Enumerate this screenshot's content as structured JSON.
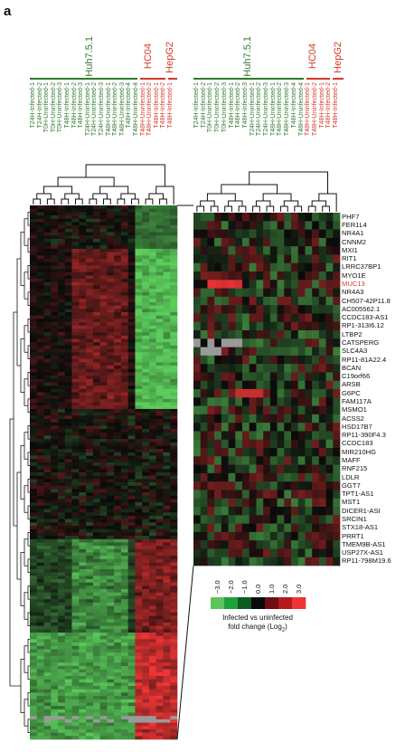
{
  "panel_letter": "a",
  "left_groups": [
    {
      "label": "Huh7.5.1",
      "color": "#2f7a2f"
    },
    {
      "label": "HC04",
      "color": "#d23a2a"
    },
    {
      "label": "HepG2",
      "color": "#d23a2a"
    }
  ],
  "right_groups": [
    {
      "label": "Huh7.5.1",
      "color": "#2f7a2f"
    },
    {
      "label": "HC04",
      "color": "#d23a2a"
    },
    {
      "label": "HepG2",
      "color": "#d23a2a"
    }
  ],
  "left_columns": [
    {
      "label": "T24H-Infected-1",
      "color": "#2f7a2f"
    },
    {
      "label": "T24H-Infected-2",
      "color": "#2f7a2f"
    },
    {
      "label": "T0H-Uninfected-1",
      "color": "#2f7a2f"
    },
    {
      "label": "T0H-Uninfected-2",
      "color": "#2f7a2f"
    },
    {
      "label": "T0H-Uninfected-3",
      "color": "#2f7a2f"
    },
    {
      "label": "T48H-Infected-1",
      "color": "#2f7a2f"
    },
    {
      "label": "T48H-Infected-2",
      "color": "#2f7a2f"
    },
    {
      "label": "T48H-Infected-3",
      "color": "#2f7a2f"
    },
    {
      "label": "T24H-Uninfected-1",
      "color": "#2f7a2f"
    },
    {
      "label": "T24H-Uninfected-2",
      "color": "#2f7a2f"
    },
    {
      "label": "T24H-Uninfected-3",
      "color": "#2f7a2f"
    },
    {
      "label": "T48H-Uninfected-1",
      "color": "#2f7a2f"
    },
    {
      "label": "T48H-Uninfected-2",
      "color": "#2f7a2f"
    },
    {
      "label": "T48H-Uninfected-3",
      "color": "#2f7a2f"
    },
    {
      "label": "T48H-Infected-4",
      "color": "#2f7a2f"
    },
    {
      "label": "T48H-Uninfected-4",
      "color": "#2f7a2f"
    },
    {
      "label": "T48H-Uninfected-1",
      "color": "#d23a2a"
    },
    {
      "label": "T48H-Uninfected-2",
      "color": "#d23a2a"
    },
    {
      "label": "T48H-Infected-1",
      "color": "#d23a2a"
    },
    {
      "label": "T48H-Infected-2",
      "color": "#d23a2a"
    },
    {
      "label": "T48H-Infected-1",
      "color": "#d23a2a"
    }
  ],
  "right_columns": [
    {
      "label": "T24H-Infected-1",
      "color": "#2f7a2f"
    },
    {
      "label": "T24H-Infected-2",
      "color": "#2f7a2f"
    },
    {
      "label": "T0H-Uninfected-1",
      "color": "#2f7a2f"
    },
    {
      "label": "T0H-Uninfected-2",
      "color": "#2f7a2f"
    },
    {
      "label": "T0H-Uninfected-3",
      "color": "#2f7a2f"
    },
    {
      "label": "T48H-Infected-1",
      "color": "#2f7a2f"
    },
    {
      "label": "T48H-Infected-2",
      "color": "#2f7a2f"
    },
    {
      "label": "T48H-Infected-3",
      "color": "#2f7a2f"
    },
    {
      "label": "T24H-Uninfected-1",
      "color": "#2f7a2f"
    },
    {
      "label": "T24H-Uninfected-2",
      "color": "#2f7a2f"
    },
    {
      "label": "T24H-Uninfected-3",
      "color": "#2f7a2f"
    },
    {
      "label": "T48H-Uninfected-1",
      "color": "#2f7a2f"
    },
    {
      "label": "T48H-Uninfected-2",
      "color": "#2f7a2f"
    },
    {
      "label": "T48H-Uninfected-3",
      "color": "#2f7a2f"
    },
    {
      "label": "T48H-Infected-4",
      "color": "#2f7a2f"
    },
    {
      "label": "T48H-Uninfected-4",
      "color": "#2f7a2f"
    },
    {
      "label": "T48H-Uninfected-1",
      "color": "#d23a2a"
    },
    {
      "label": "T48H-Uninfected-2",
      "color": "#d23a2a"
    },
    {
      "label": "T48H-Infected-1",
      "color": "#d23a2a"
    },
    {
      "label": "T48H-Infected-2",
      "color": "#d23a2a"
    },
    {
      "label": "T48H-Infected-1",
      "color": "#d23a2a"
    }
  ],
  "genes": [
    {
      "name": "PHF7",
      "color": "#111111"
    },
    {
      "name": "FER1L4",
      "color": "#111111"
    },
    {
      "name": "NR4A1",
      "color": "#111111"
    },
    {
      "name": "CNNM2",
      "color": "#111111"
    },
    {
      "name": "MXI1",
      "color": "#111111"
    },
    {
      "name": "RIT1",
      "color": "#111111"
    },
    {
      "name": "LRRC37BP1",
      "color": "#111111"
    },
    {
      "name": "MYO1E",
      "color": "#111111"
    },
    {
      "name": "MUC13",
      "color": "#d23a2a"
    },
    {
      "name": "NR4A3",
      "color": "#111111"
    },
    {
      "name": "CH507-42P11.8",
      "color": "#111111"
    },
    {
      "name": "AC005562.1",
      "color": "#111111"
    },
    {
      "name": "CCDC183-AS1",
      "color": "#111111"
    },
    {
      "name": "RP1-313I6.12",
      "color": "#111111"
    },
    {
      "name": "LTBP2",
      "color": "#111111"
    },
    {
      "name": "CATSPERG",
      "color": "#111111"
    },
    {
      "name": "SLC4A3",
      "color": "#111111"
    },
    {
      "name": "RP11-81A22.4",
      "color": "#111111"
    },
    {
      "name": "BCAN",
      "color": "#111111"
    },
    {
      "name": "C19orf66",
      "color": "#111111"
    },
    {
      "name": "ARSB",
      "color": "#111111"
    },
    {
      "name": "G6PC",
      "color": "#111111"
    },
    {
      "name": "FAM117A",
      "color": "#111111"
    },
    {
      "name": "MSMO1",
      "color": "#111111"
    },
    {
      "name": "ACSS2",
      "color": "#111111"
    },
    {
      "name": "HSD17B7",
      "color": "#111111"
    },
    {
      "name": "RP11-390F4.3",
      "color": "#111111"
    },
    {
      "name": "CCDC183",
      "color": "#111111"
    },
    {
      "name": "MIR210HG",
      "color": "#111111"
    },
    {
      "name": "MAFF",
      "color": "#111111"
    },
    {
      "name": "RNF215",
      "color": "#111111"
    },
    {
      "name": "LDLR",
      "color": "#111111"
    },
    {
      "name": "GGT7",
      "color": "#111111"
    },
    {
      "name": "TPT1-AS1",
      "color": "#111111"
    },
    {
      "name": "MST1",
      "color": "#111111"
    },
    {
      "name": "DICER1-ASI",
      "color": "#111111"
    },
    {
      "name": "SRCIN1",
      "color": "#111111"
    },
    {
      "name": "STX18-AS1",
      "color": "#111111"
    },
    {
      "name": "PRRT1",
      "color": "#111111"
    },
    {
      "name": "TMEM9B-AS1",
      "color": "#111111"
    },
    {
      "name": "USP27X-AS1",
      "color": "#111111"
    },
    {
      "name": "RP11-798M19.6",
      "color": "#111111"
    }
  ],
  "colorbar": {
    "ticks": [
      "−3.0",
      "−2.0",
      "−1.0",
      "0.0",
      "1.0",
      "2.0",
      "3.0"
    ],
    "colors": [
      "#5cc55c",
      "#1fa13a",
      "#0f5a22",
      "#0a0a0a",
      "#6e1010",
      "#b31a1a",
      "#ee3535"
    ],
    "title_line1": "Infected vs uninfected",
    "title_line2": "fold change (Log",
    "title_sub": "2",
    "title_end": ")"
  },
  "colors": {
    "green": "#2f7a2f",
    "red": "#d23a2a",
    "missing": "#9a9a9a"
  }
}
